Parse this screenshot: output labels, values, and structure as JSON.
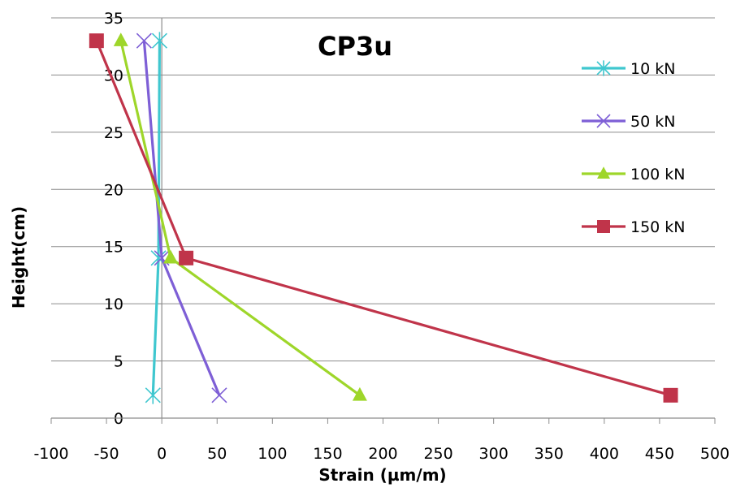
{
  "chart_data": {
    "type": "line",
    "title": "CP3u",
    "xlabel": "Strain (µm/m)",
    "ylabel": "Height(cm)",
    "xlim": [
      -100,
      500
    ],
    "ylim": [
      0,
      35
    ],
    "xticks": [
      "-100",
      "-50",
      "0",
      "50",
      "100",
      "150",
      "200",
      "250",
      "300",
      "350",
      "400",
      "450",
      "500"
    ],
    "yticks": [
      "0",
      "5",
      "10",
      "15",
      "20",
      "25",
      "30",
      "35"
    ],
    "grid": "horizontal",
    "legend_position": "right",
    "series": [
      {
        "name": "10 kN",
        "color": "#3fc7cf",
        "marker": "asterisk",
        "points": [
          {
            "x": -8,
            "y": 2
          },
          {
            "x": -3,
            "y": 14
          },
          {
            "x": -2,
            "y": 33
          }
        ]
      },
      {
        "name": "50 kN",
        "color": "#7e5fd6",
        "marker": "x",
        "points": [
          {
            "x": 52,
            "y": 2
          },
          {
            "x": 0,
            "y": 14
          },
          {
            "x": -16,
            "y": 33
          }
        ]
      },
      {
        "name": "100 kN",
        "color": "#9ed62a",
        "marker": "triangle",
        "points": [
          {
            "x": 179,
            "y": 2
          },
          {
            "x": 8,
            "y": 14
          },
          {
            "x": -37,
            "y": 33
          }
        ]
      },
      {
        "name": "150 kN",
        "color": "#c0344a",
        "marker": "square",
        "points": [
          {
            "x": 460,
            "y": 2
          },
          {
            "x": 22,
            "y": 14
          },
          {
            "x": -59,
            "y": 33
          }
        ]
      }
    ]
  }
}
